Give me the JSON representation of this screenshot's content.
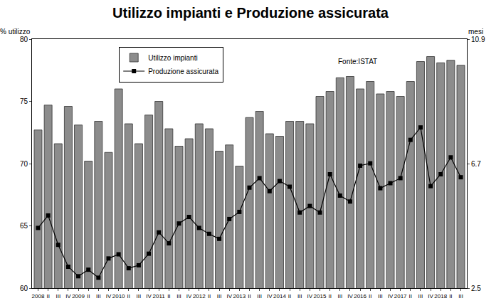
{
  "chart_data": {
    "type": "bar",
    "title": "Utilizzo impianti e Produzione assicurata",
    "y_label": "% utilizzo",
    "y2_label": "mesi",
    "annotations": [
      "Fonte:ISTAT"
    ],
    "categories": [
      "2008",
      "II",
      "III",
      "IV",
      "2009",
      "II",
      "III",
      "IV",
      "2010",
      "II",
      "III",
      "IV",
      "2011",
      "II",
      "III",
      "IV",
      "2012",
      "II",
      "III",
      "IV",
      "2013",
      "II",
      "III",
      "IV",
      "2014",
      "II",
      "III",
      "IV",
      "2015",
      "II",
      "III",
      "IV",
      "2016",
      "II",
      "III",
      "IV",
      "2017",
      "II",
      "III",
      "IV",
      "2018",
      "II",
      "III"
    ],
    "series": [
      {
        "name": "Utilizzo impianti",
        "type": "bar",
        "color": "#8c8c8c",
        "values": [
          72.7,
          74.7,
          71.6,
          74.6,
          73.1,
          70.2,
          73.4,
          70.9,
          76.0,
          73.2,
          71.6,
          73.9,
          75.0,
          72.8,
          71.4,
          72.0,
          73.2,
          72.8,
          71.0,
          71.5,
          69.8,
          73.7,
          74.2,
          72.4,
          72.2,
          73.4,
          73.4,
          73.2,
          75.4,
          75.8,
          76.9,
          77.0,
          76.0,
          76.6,
          75.6,
          75.8,
          75.4,
          76.6,
          78.2,
          78.6,
          78.1,
          78.3,
          77.9
        ]
      },
      {
        "name": "Produzione assicurata",
        "type": "line",
        "axis": "y2",
        "color": "#000000",
        "marker": "square",
        "line_style": "solid",
        "values": [
          4.53,
          4.95,
          3.96,
          3.22,
          2.9,
          3.12,
          2.85,
          3.5,
          3.64,
          3.17,
          3.27,
          3.66,
          4.38,
          4.01,
          4.68,
          4.9,
          4.53,
          4.33,
          4.16,
          4.83,
          5.07,
          5.89,
          6.21,
          5.77,
          6.11,
          5.92,
          5.05,
          5.27,
          5.05,
          6.34,
          5.62,
          5.42,
          6.63,
          6.71,
          5.87,
          6.04,
          6.21,
          7.5,
          7.92,
          5.94,
          6.34,
          6.91,
          6.24
        ]
      }
    ],
    "ylim": [
      60,
      80
    ],
    "yticks": [
      60,
      65,
      70,
      75,
      80
    ],
    "y2lim": [
      2.5,
      10.9
    ],
    "y2ticks": [
      2.5,
      6.7,
      10.9
    ],
    "grid": false,
    "legend": "upper left"
  }
}
